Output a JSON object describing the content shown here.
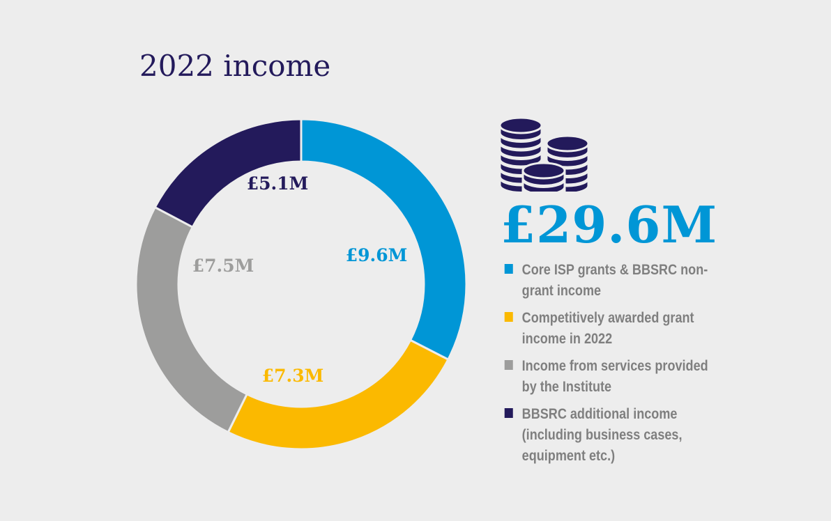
{
  "chart_data": {
    "type": "pie",
    "variant": "donut",
    "title": "2022 income",
    "total_label": "£29.6M",
    "start": "top",
    "direction": "clockwise",
    "slices": [
      {
        "label": "Core ISP grants & BBSRC non-grant income",
        "value": 9.6,
        "value_label": "£9.6M",
        "color": "#0096d6"
      },
      {
        "label": "Competitively awarded grant income in 2022",
        "value": 7.3,
        "value_label": "£7.3M",
        "color": "#fbb900"
      },
      {
        "label": "Income from services provided by the Institute",
        "value": 7.5,
        "value_label": "£7.5M",
        "color": "#9d9d9c"
      },
      {
        "label": "BBSRC additional income (including business cases, equipment etc.)",
        "value": 5.1,
        "value_label": "£5.1M",
        "color": "#231a5b"
      }
    ]
  },
  "icons": {
    "coins": "coins-stack-icon"
  }
}
